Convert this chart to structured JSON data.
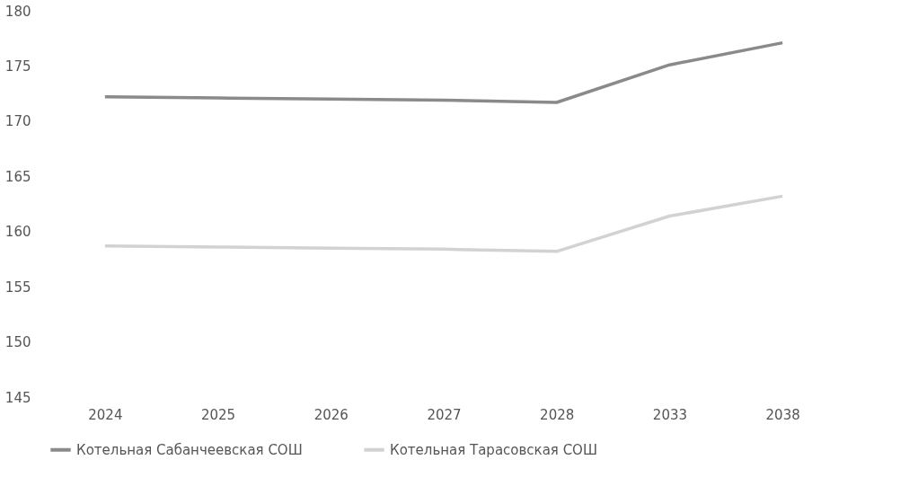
{
  "chart_data": {
    "type": "line",
    "categories": [
      "2024",
      "2025",
      "2026",
      "2027",
      "2028",
      "2033",
      "2038"
    ],
    "series": [
      {
        "name": "Котельная Сабанчеевская СОШ",
        "color": "#8a8a8a",
        "values": [
          172.2,
          172.1,
          172.0,
          171.9,
          171.7,
          175.1,
          177.1
        ]
      },
      {
        "name": "Котельная Тарасовская СОШ",
        "color": "#d2d2d2",
        "values": [
          158.7,
          158.6,
          158.5,
          158.4,
          158.2,
          161.4,
          163.2
        ]
      }
    ],
    "ylim": [
      145,
      180
    ],
    "yticks": [
      145,
      150,
      155,
      160,
      165,
      170,
      175,
      180
    ],
    "grid": false,
    "legend": "bottom",
    "marker": "none",
    "line_style": "solid"
  }
}
